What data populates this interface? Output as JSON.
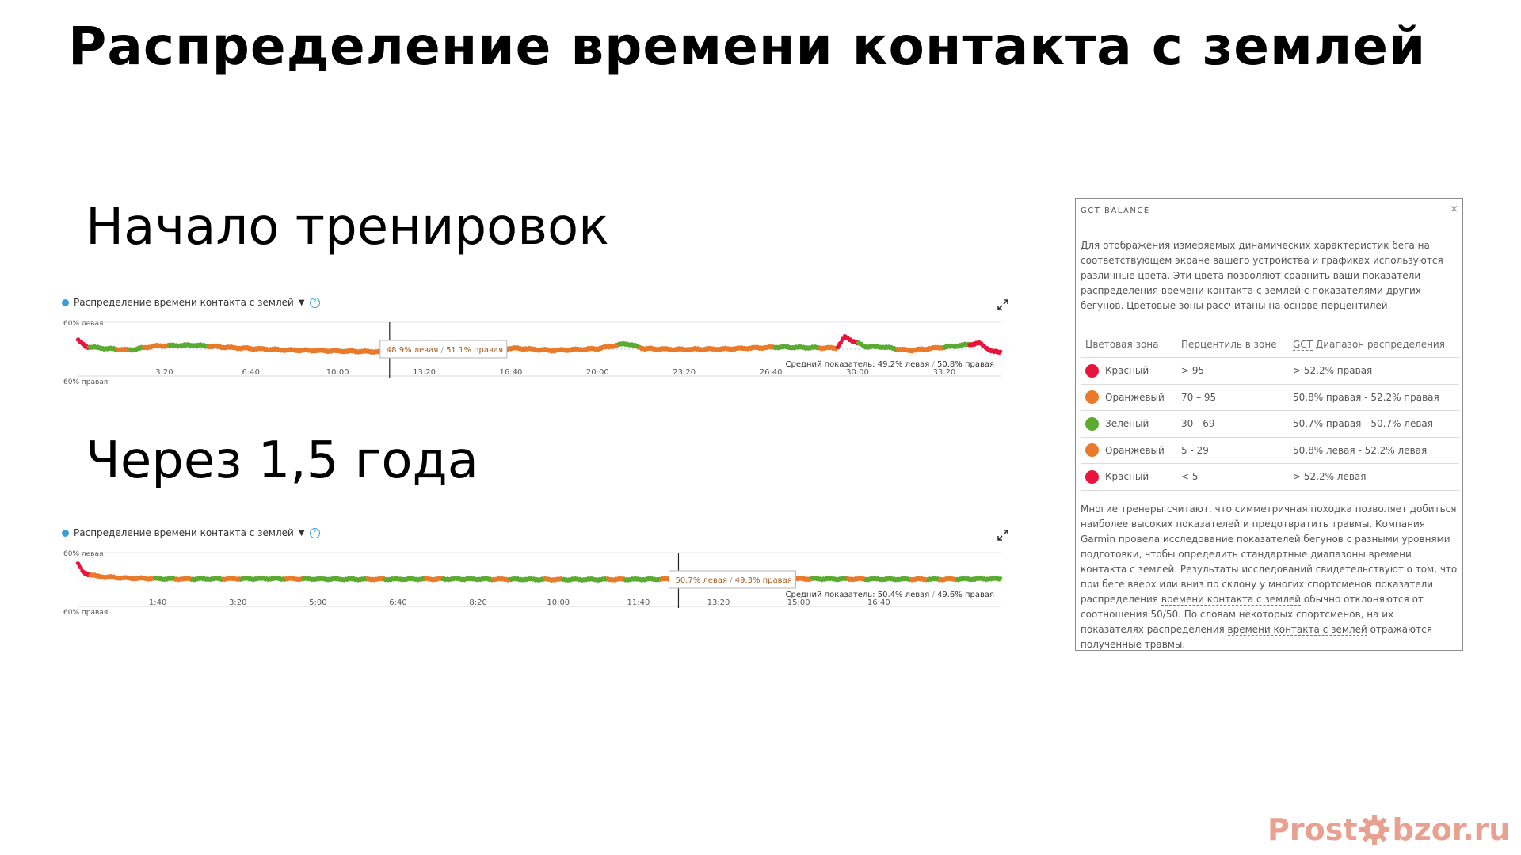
{
  "slide": {
    "title": "Распределение времени контакта с землей",
    "section_start": "Начало тренировок",
    "section_later": "Через 1,5 года"
  },
  "watermark": {
    "left_text": "Prost",
    "right_text": "bzor.ru",
    "icon": "gear-icon",
    "color": "#e8a090"
  },
  "colors": {
    "green": "#5bab32",
    "orange": "#e87a2a",
    "red": "#e8143c",
    "metric_dot": "#3a9fd9"
  },
  "charts": [
    {
      "header": "Распределение времени контакта с землей",
      "top_label": "60% левая",
      "bottom_label": "60% правая",
      "tooltip_left": "48.9% левая",
      "tooltip_right": "51.1% правая",
      "avg_label": "Средний показатель:",
      "avg_left": "49.2% левая",
      "avg_right": "50.8% правая"
    },
    {
      "header": "Распределение времени контакта с землей",
      "top_label": "60% левая",
      "bottom_label": "60% правая",
      "tooltip_left": "50.7% левая",
      "tooltip_right": "49.3% правая",
      "avg_label": "Средний показатель:",
      "avg_left": "50.4% левая",
      "avg_right": "49.6% правая"
    }
  ],
  "chart_data": [
    {
      "type": "scatter",
      "title": "Начало тренировок",
      "x_unit": "minutes",
      "xlim": [
        0,
        35.5
      ],
      "ylim": [
        -10,
        10
      ],
      "y_meaning": "left share minus 50%",
      "tick_labels": [
        "3:20",
        "6:40",
        "10:00",
        "13:20",
        "16:40",
        "20:00",
        "23:20",
        "26:40",
        "30:00",
        "33:20"
      ],
      "tick_values": [
        3.333,
        6.667,
        10,
        13.333,
        16.667,
        20,
        23.333,
        26.667,
        30,
        33.333
      ],
      "cursor_x": 12.0,
      "tooltip_value": {
        "left": 48.9,
        "right": 51.1
      },
      "average": {
        "left": 49.2,
        "right": 50.8
      },
      "grid": false,
      "anchors": [
        [
          0,
          3.5
        ],
        [
          0.3,
          1
        ],
        [
          1,
          0.3
        ],
        [
          2,
          -0.3
        ],
        [
          3,
          1.2
        ],
        [
          4.5,
          1.5
        ],
        [
          6,
          0.5
        ],
        [
          8,
          -0.3
        ],
        [
          11.8,
          -1
        ],
        [
          12.4,
          -0.8
        ],
        [
          13,
          -0.1
        ],
        [
          15,
          0.2
        ],
        [
          17,
          0.3
        ],
        [
          18.2,
          -0.5
        ],
        [
          20,
          0.2
        ],
        [
          21.1,
          2.1
        ],
        [
          21.8,
          0.2
        ],
        [
          23,
          -0.1
        ],
        [
          25,
          0.1
        ],
        [
          27,
          0.8
        ],
        [
          28,
          0.6
        ],
        [
          29.2,
          0.4
        ],
        [
          29.5,
          4.5
        ],
        [
          30.3,
          1
        ],
        [
          31,
          0.8
        ],
        [
          32,
          -0.5
        ],
        [
          33.5,
          0.9
        ],
        [
          34.7,
          2.2
        ],
        [
          35.2,
          -1
        ]
      ],
      "zones": [
        {
          "from": 0,
          "to": 0.4,
          "zone": "red"
        },
        {
          "from": 0.4,
          "to": 1.5,
          "zone": "green"
        },
        {
          "from": 1.5,
          "to": 2.0,
          "zone": "orange"
        },
        {
          "from": 2.0,
          "to": 2.5,
          "zone": "green"
        },
        {
          "from": 2.5,
          "to": 3.5,
          "zone": "orange"
        },
        {
          "from": 3.5,
          "to": 5.0,
          "zone": "green"
        },
        {
          "from": 5.0,
          "to": 20.8,
          "zone": "orange"
        },
        {
          "from": 20.8,
          "to": 21.6,
          "zone": "green"
        },
        {
          "from": 21.6,
          "to": 26.8,
          "zone": "orange"
        },
        {
          "from": 26.8,
          "to": 28.5,
          "zone": "green"
        },
        {
          "from": 28.5,
          "to": 29.2,
          "zone": "orange"
        },
        {
          "from": 29.2,
          "to": 30.0,
          "zone": "red"
        },
        {
          "from": 30.0,
          "to": 31.5,
          "zone": "green"
        },
        {
          "from": 31.5,
          "to": 33.3,
          "zone": "orange"
        },
        {
          "from": 33.3,
          "to": 34.3,
          "zone": "green"
        },
        {
          "from": 34.3,
          "to": 35.5,
          "zone": "red"
        }
      ]
    },
    {
      "type": "scatter",
      "title": "Через 1,5 года",
      "x_unit": "minutes",
      "xlim": [
        0,
        19.2
      ],
      "ylim": [
        -10,
        10
      ],
      "y_meaning": "left share minus 50%",
      "tick_labels": [
        "1:40",
        "3:20",
        "5:00",
        "6:40",
        "8:20",
        "10:00",
        "11:40",
        "13:20",
        "15:00",
        "16:40"
      ],
      "tick_values": [
        1.667,
        3.333,
        5,
        6.667,
        8.333,
        10,
        11.667,
        13.333,
        15,
        16.667
      ],
      "cursor_x": 12.5,
      "tooltip_value": {
        "left": 50.7,
        "right": 49.3
      },
      "average": {
        "left": 50.4,
        "right": 49.6
      },
      "grid": false,
      "anchors": [
        [
          0,
          6
        ],
        [
          0.12,
          2.5
        ],
        [
          0.4,
          1.2
        ],
        [
          1,
          0.5
        ],
        [
          2,
          0.2
        ],
        [
          4,
          0.3
        ],
        [
          6,
          0.1
        ],
        [
          8,
          0.2
        ],
        [
          10,
          0
        ],
        [
          12,
          0.1
        ],
        [
          14,
          0.3
        ],
        [
          16,
          0.2
        ],
        [
          18,
          0.1
        ],
        [
          19.2,
          0.3
        ]
      ],
      "zones": [
        {
          "from": 0,
          "to": 0.25,
          "zone": "red"
        },
        {
          "from": 0.25,
          "to": 1.6,
          "zone": "orange"
        },
        {
          "from": 1.6,
          "to": 19.2,
          "zone": "green"
        }
      ],
      "orange_points": [
        2.2,
        3.2,
        4.5,
        6.2,
        7.4,
        8.8,
        9.9,
        11.2,
        12.3,
        13.9,
        14.0,
        14.3,
        15.1,
        16.2,
        17.5,
        18.1
      ]
    }
  ],
  "gct_panel": {
    "title": "GCT BALANCE",
    "close": "×",
    "intro": "Для отображения измеряемых динамических характеристик бега на соответствующем экране вашего устройства и графиках используются различные цвета. Эти цвета позволяют сравнить ваши показатели распределения времени контакта с землей с показателями других бегунов. Цветовые зоны рассчитаны на основе перцентилей.",
    "columns": {
      "zone": "Цветовая зона",
      "percentile": "Перцентиль в зоне",
      "range_abbr": "GCT",
      "range_rest": " Диапазон распределения"
    },
    "rows": [
      {
        "color": "#e8143c",
        "name": "Красный",
        "percentile": "> 95",
        "range": "> 52.2% правая"
      },
      {
        "color": "#e87a2a",
        "name": "Оранжевый",
        "percentile": "70 – 95",
        "range": "50.8% правая - 52.2% правая"
      },
      {
        "color": "#5bab32",
        "name": "Зеленый",
        "percentile": "30 - 69",
        "range": "50.7% правая - 50.7% левая"
      },
      {
        "color": "#e87a2a",
        "name": "Оранжевый",
        "percentile": "5 - 29",
        "range": "50.8% левая - 52.2% левая"
      },
      {
        "color": "#e8143c",
        "name": "Красный",
        "percentile": "< 5",
        "range": "> 52.2% левая"
      }
    ],
    "footer_part1": "Многие тренеры считают, что симметричная походка позволяет добиться наиболее высоких показателей и предотвратить травмы. Компания Garmin провела исследование показателей бегунов с разными уровнями подготовки, чтобы определить стандартные диапазоны времени контакта с землей. Результаты исследований свидетельствуют о том, что при беге вверх или вниз по склону у многих спортсменов показатели распределения ",
    "footer_link1": "времени контакта с землей",
    "footer_part2": " обычно отклоняются от соотношения 50/50. По словам некоторых спортсменов, на их показателях распределения ",
    "footer_link2": "времени контакта с землей",
    "footer_part3": " отражаются полученные травмы."
  }
}
